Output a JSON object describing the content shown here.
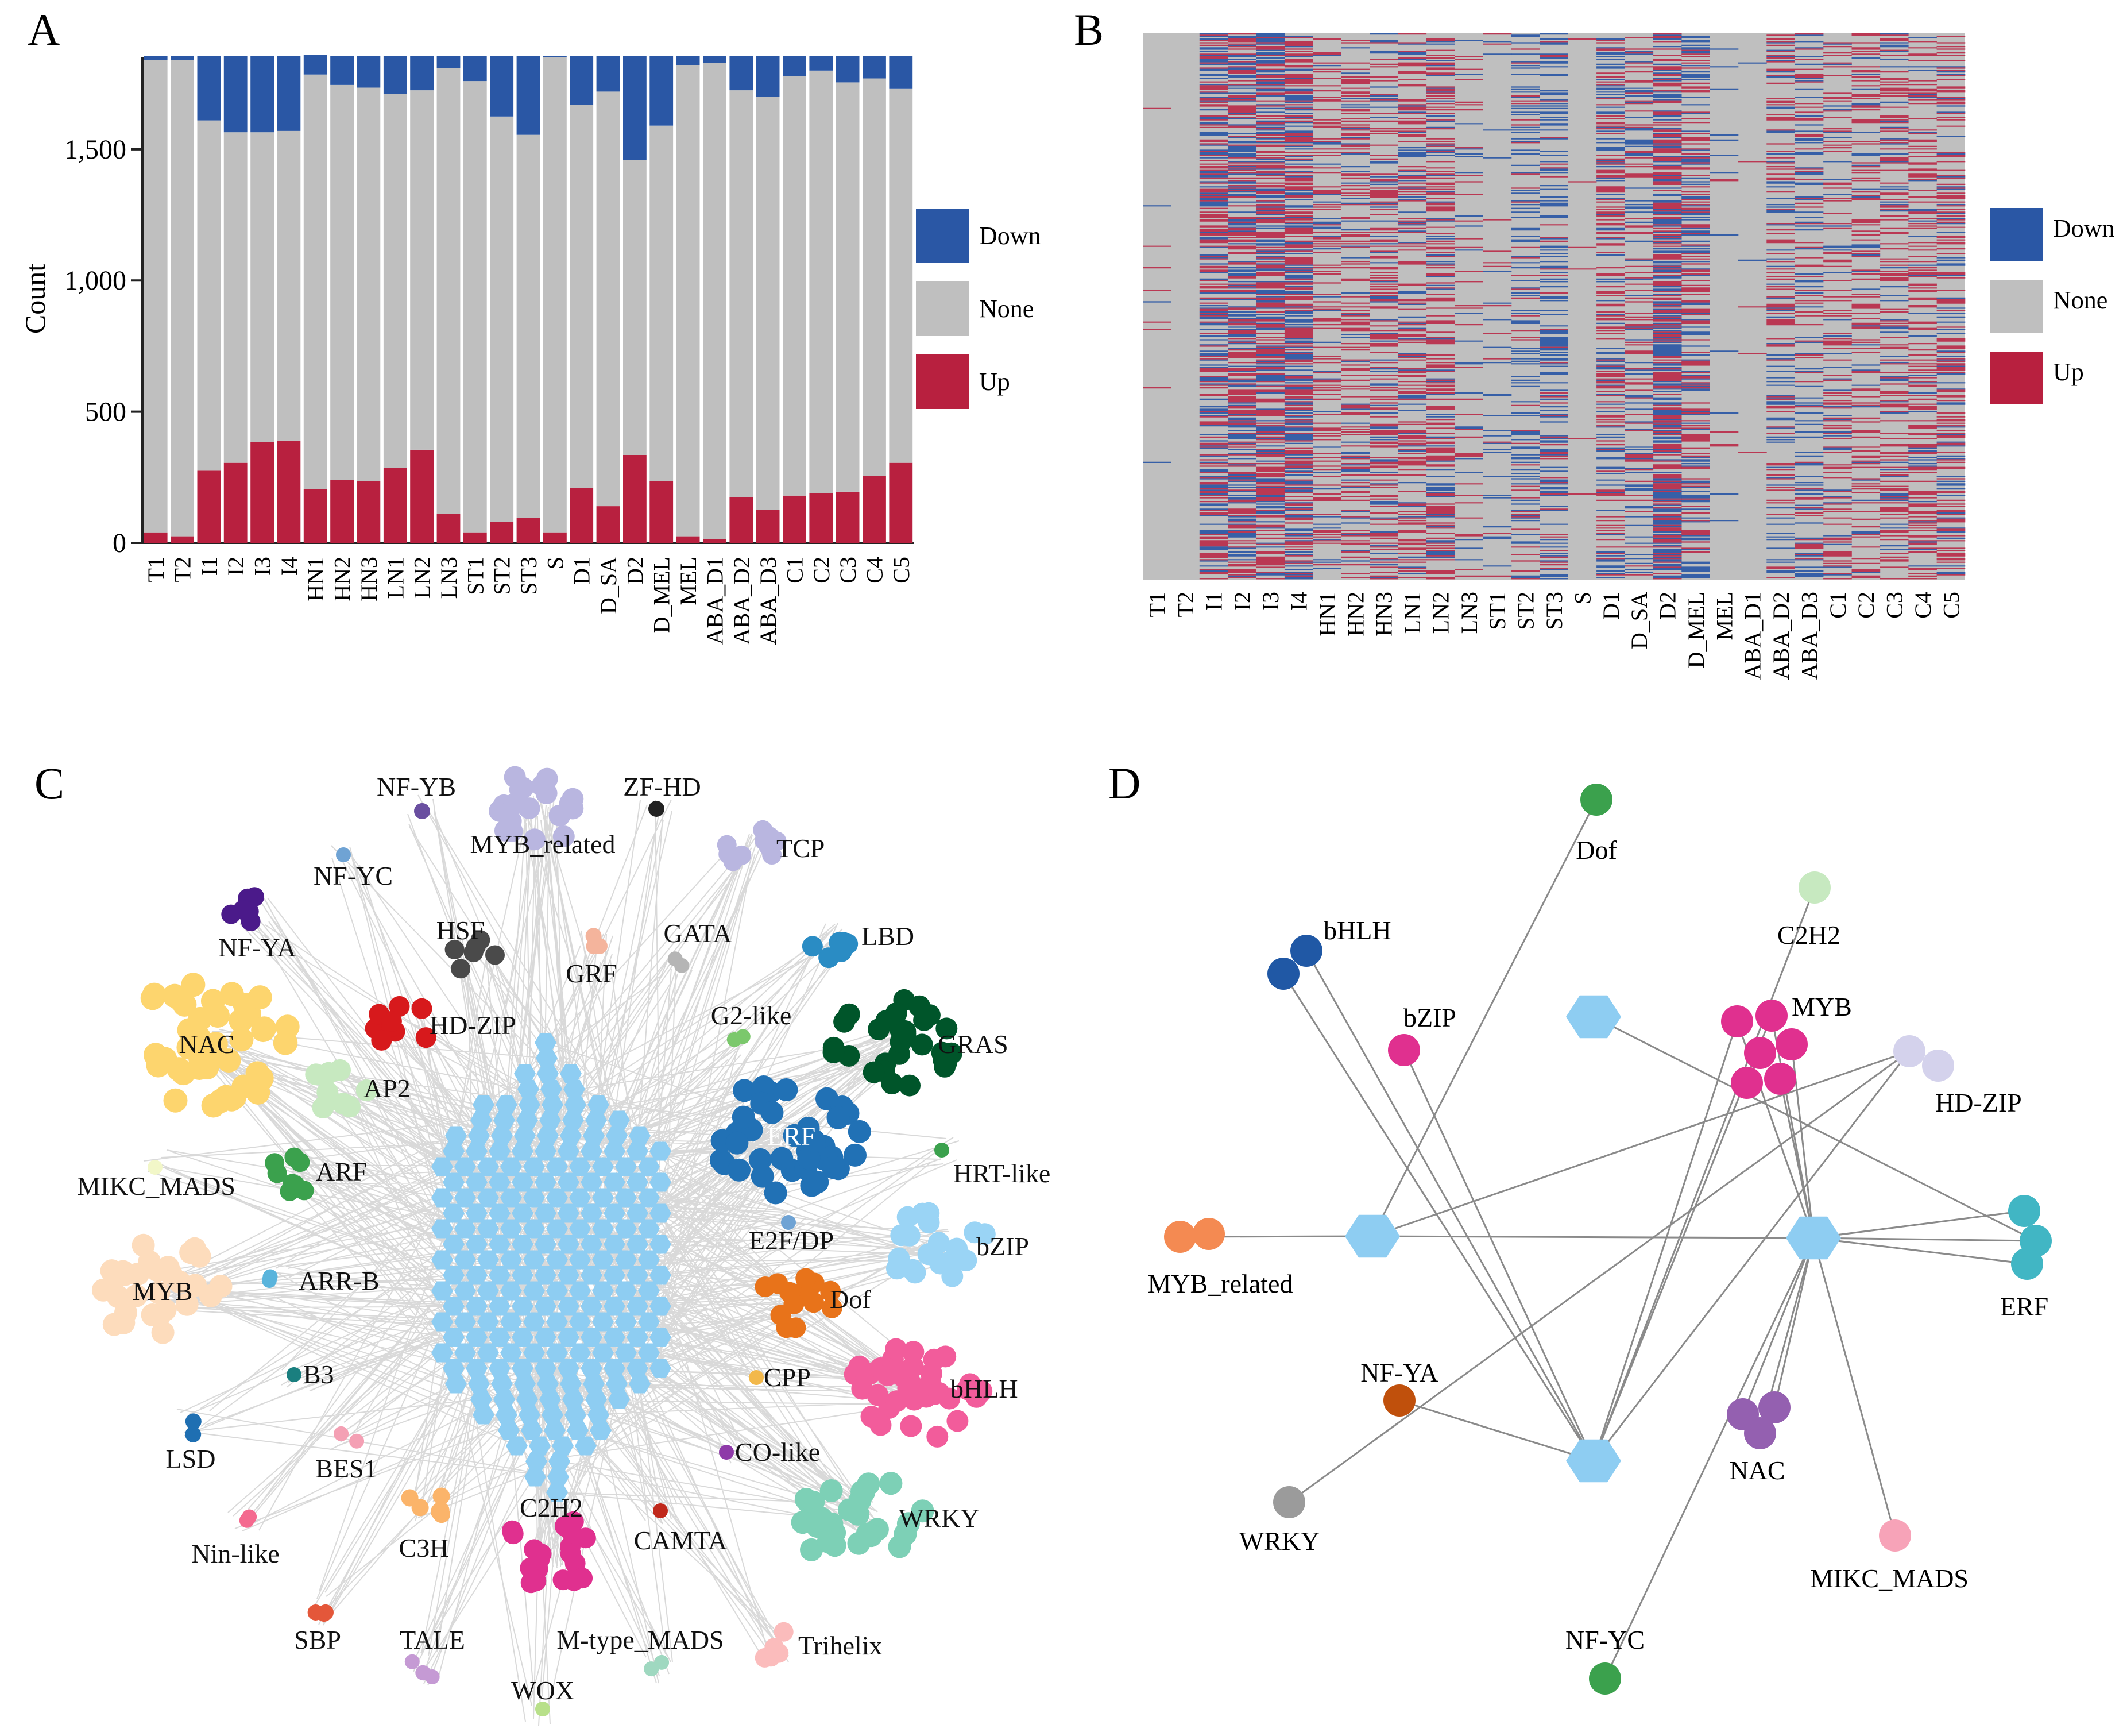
{
  "panels": {
    "a": {
      "label": "A"
    },
    "b": {
      "label": "B"
    },
    "c": {
      "label": "C"
    },
    "d": {
      "label": "D"
    }
  },
  "chart_data": [
    {
      "type": "bar",
      "stacked": true,
      "title": "",
      "xlabel": "",
      "ylabel": "Count",
      "ylim": [
        0,
        1850
      ],
      "yticks": [
        0,
        500,
        1000,
        1500
      ],
      "ytick_labels": [
        "0",
        "500",
        "1,000",
        "1,500"
      ],
      "categories": [
        "T1",
        "T2",
        "I1",
        "I2",
        "I3",
        "I4",
        "HN1",
        "HN2",
        "HN3",
        "LN1",
        "LN2",
        "LN3",
        "ST1",
        "ST2",
        "ST3",
        "S",
        "D1",
        "D_SA",
        "D2",
        "D_MEL",
        "MEL",
        "ABA_D1",
        "ABA_D2",
        "ABA_D3",
        "C1",
        "C2",
        "C3",
        "C4",
        "C5"
      ],
      "series": [
        {
          "name": "Up",
          "color": "#b8203f",
          "values": [
            40,
            25,
            275,
            305,
            385,
            390,
            205,
            240,
            235,
            285,
            355,
            110,
            40,
            80,
            95,
            40,
            210,
            140,
            335,
            235,
            25,
            15,
            175,
            125,
            180,
            190,
            195,
            255,
            305
          ]
        },
        {
          "name": "None",
          "color": "#bfbfbf",
          "values": [
            1800,
            1815,
            1335,
            1260,
            1180,
            1180,
            1580,
            1505,
            1500,
            1425,
            1370,
            1700,
            1720,
            1545,
            1460,
            1810,
            1460,
            1580,
            1125,
            1355,
            1795,
            1815,
            1550,
            1575,
            1600,
            1610,
            1560,
            1515,
            1425
          ]
        },
        {
          "name": "Down",
          "color": "#2a57a5",
          "values": [
            15,
            15,
            245,
            290,
            290,
            285,
            75,
            110,
            120,
            145,
            130,
            45,
            95,
            230,
            300,
            5,
            185,
            135,
            395,
            265,
            35,
            25,
            130,
            155,
            75,
            55,
            100,
            85,
            125
          ]
        }
      ],
      "legend": {
        "position": "right",
        "items": [
          "Down",
          "None",
          "Up"
        ]
      }
    },
    {
      "type": "heatmap",
      "title": "",
      "categories": [
        "T1",
        "T2",
        "I1",
        "I2",
        "I3",
        "I4",
        "HN1",
        "HN2",
        "HN3",
        "LN1",
        "LN2",
        "LN3",
        "ST1",
        "ST2",
        "ST3",
        "S",
        "D1",
        "D_SA",
        "D2",
        "D_MEL",
        "MEL",
        "ABA_D1",
        "ABA_D2",
        "ABA_D3",
        "C1",
        "C2",
        "C3",
        "C4",
        "C5"
      ],
      "density": [
        0.02,
        0.0,
        0.55,
        0.6,
        0.68,
        0.7,
        0.3,
        0.38,
        0.4,
        0.42,
        0.48,
        0.12,
        0.08,
        0.28,
        0.35,
        0.01,
        0.45,
        0.32,
        0.72,
        0.48,
        0.03,
        0.02,
        0.35,
        0.32,
        0.3,
        0.3,
        0.35,
        0.38,
        0.42
      ],
      "down_fraction": [
        0.3,
        0.5,
        0.47,
        0.49,
        0.43,
        0.42,
        0.27,
        0.31,
        0.34,
        0.34,
        0.27,
        0.29,
        0.7,
        0.74,
        0.76,
        0.1,
        0.47,
        0.49,
        0.54,
        0.53,
        0.58,
        0.6,
        0.43,
        0.55,
        0.29,
        0.22,
        0.34,
        0.25,
        0.29
      ],
      "legend": {
        "position": "right",
        "items": [
          "Down",
          "None",
          "Up"
        ]
      },
      "colors": {
        "Down": "#2a57a5",
        "None": "#bfbfbf",
        "Up": "#b8203f"
      }
    }
  ],
  "network_c": {
    "families": [
      {
        "name": "NF-YB",
        "color": "#6a4fa0",
        "n": 1,
        "size": 14
      },
      {
        "name": "MYB_related",
        "color": "#b9b6e0",
        "n": 20,
        "size": 19
      },
      {
        "name": "ZF-HD",
        "color": "#222222",
        "n": 1,
        "size": 14
      },
      {
        "name": "TCP",
        "color": "#b9b6e0",
        "n": 10,
        "size": 17
      },
      {
        "name": "NF-YC",
        "color": "#6fa3d4",
        "n": 1,
        "size": 13
      },
      {
        "name": "NF-YA",
        "color": "#4b1a8a",
        "n": 6,
        "size": 17
      },
      {
        "name": "HSF",
        "color": "#4a4a4a",
        "n": 6,
        "size": 17
      },
      {
        "name": "GRF",
        "color": "#f4b49c",
        "n": 3,
        "size": 14
      },
      {
        "name": "GATA",
        "color": "#b5b5b5",
        "n": 2,
        "size": 13
      },
      {
        "name": "LBD",
        "color": "#2a8cc4",
        "n": 7,
        "size": 18
      },
      {
        "name": "NAC",
        "color": "#fdd56e",
        "n": 45,
        "size": 21
      },
      {
        "name": "HD-ZIP",
        "color": "#d7191c",
        "n": 9,
        "size": 18
      },
      {
        "name": "G2-like",
        "color": "#7bc86c",
        "n": 2,
        "size": 13
      },
      {
        "name": "GRAS",
        "color": "#00552a",
        "n": 30,
        "size": 19
      },
      {
        "name": "AP2",
        "color": "#c7e9c0",
        "n": 8,
        "size": 19
      },
      {
        "name": "ERF",
        "color": "#2171b5",
        "n": 40,
        "size": 20
      },
      {
        "name": "MIKC_MADS",
        "color": "#f2f7c8",
        "n": 1,
        "size": 13
      },
      {
        "name": "ARF",
        "color": "#3ba14d",
        "n": 8,
        "size": 17
      },
      {
        "name": "HRT-like",
        "color": "#3ba14d",
        "n": 1,
        "size": 13
      },
      {
        "name": "E2F/DP",
        "color": "#6fa3d4",
        "n": 1,
        "size": 13
      },
      {
        "name": "bZIP",
        "color": "#9ad4f5",
        "n": 20,
        "size": 19
      },
      {
        "name": "MYB",
        "color": "#fddcbc",
        "n": 30,
        "size": 20
      },
      {
        "name": "ARR-B",
        "color": "#5ab4dc",
        "n": 2,
        "size": 13
      },
      {
        "name": "Dof",
        "color": "#e8731a",
        "n": 14,
        "size": 18
      },
      {
        "name": "B3",
        "color": "#1a7f7f",
        "n": 1,
        "size": 13
      },
      {
        "name": "CPP",
        "color": "#f2b84b",
        "n": 1,
        "size": 13
      },
      {
        "name": "bHLH",
        "color": "#f25c9b",
        "n": 35,
        "size": 19
      },
      {
        "name": "LSD",
        "color": "#1f6fb2",
        "n": 2,
        "size": 14
      },
      {
        "name": "BES1",
        "color": "#f4a0b4",
        "n": 2,
        "size": 13
      },
      {
        "name": "CO-like",
        "color": "#8e3aa8",
        "n": 1,
        "size": 13
      },
      {
        "name": "WRKY",
        "color": "#7dd0b6",
        "n": 30,
        "size": 20
      },
      {
        "name": "Nin-like",
        "color": "#f46a8f",
        "n": 2,
        "size": 13
      },
      {
        "name": "C3H",
        "color": "#fbb46a",
        "n": 6,
        "size": 15
      },
      {
        "name": "C2H2",
        "color": "#e0308f",
        "n": 20,
        "size": 18
      },
      {
        "name": "CAMTA",
        "color": "#c0281b",
        "n": 1,
        "size": 13
      },
      {
        "name": "SBP",
        "color": "#e4573a",
        "n": 3,
        "size": 14
      },
      {
        "name": "TALE",
        "color": "#c59ad4",
        "n": 4,
        "size": 13
      },
      {
        "name": "M-type_MADS",
        "color": "#9fd8c0",
        "n": 2,
        "size": 13
      },
      {
        "name": "Trihelix",
        "color": "#fbbcbc",
        "n": 5,
        "size": 17
      },
      {
        "name": "WOX",
        "color": "#b8e08a",
        "n": 1,
        "size": 13
      }
    ],
    "hub_color": "#8ecdf2"
  },
  "network_d": {
    "hub_color": "#8ecdf2",
    "families": [
      {
        "name": "Dof",
        "color": "#3ba14d"
      },
      {
        "name": "C2H2",
        "color": "#c7e9c0"
      },
      {
        "name": "bHLH",
        "color": "#2058a5"
      },
      {
        "name": "bZIP",
        "color": "#e0308f"
      },
      {
        "name": "MYB",
        "color": "#e0308f"
      },
      {
        "name": "HD-ZIP",
        "color": "#d4d2ec"
      },
      {
        "name": "MYB_related",
        "color": "#f48a52"
      },
      {
        "name": "ERF",
        "color": "#41b6c4"
      },
      {
        "name": "NF-YA",
        "color": "#c0500c"
      },
      {
        "name": "NAC",
        "color": "#9460b0"
      },
      {
        "name": "WRKY",
        "color": "#9b9b9b"
      },
      {
        "name": "MIKC_MADS",
        "color": "#f7a3b8"
      },
      {
        "name": "NF-YC",
        "color": "#3ba14d"
      }
    ]
  }
}
